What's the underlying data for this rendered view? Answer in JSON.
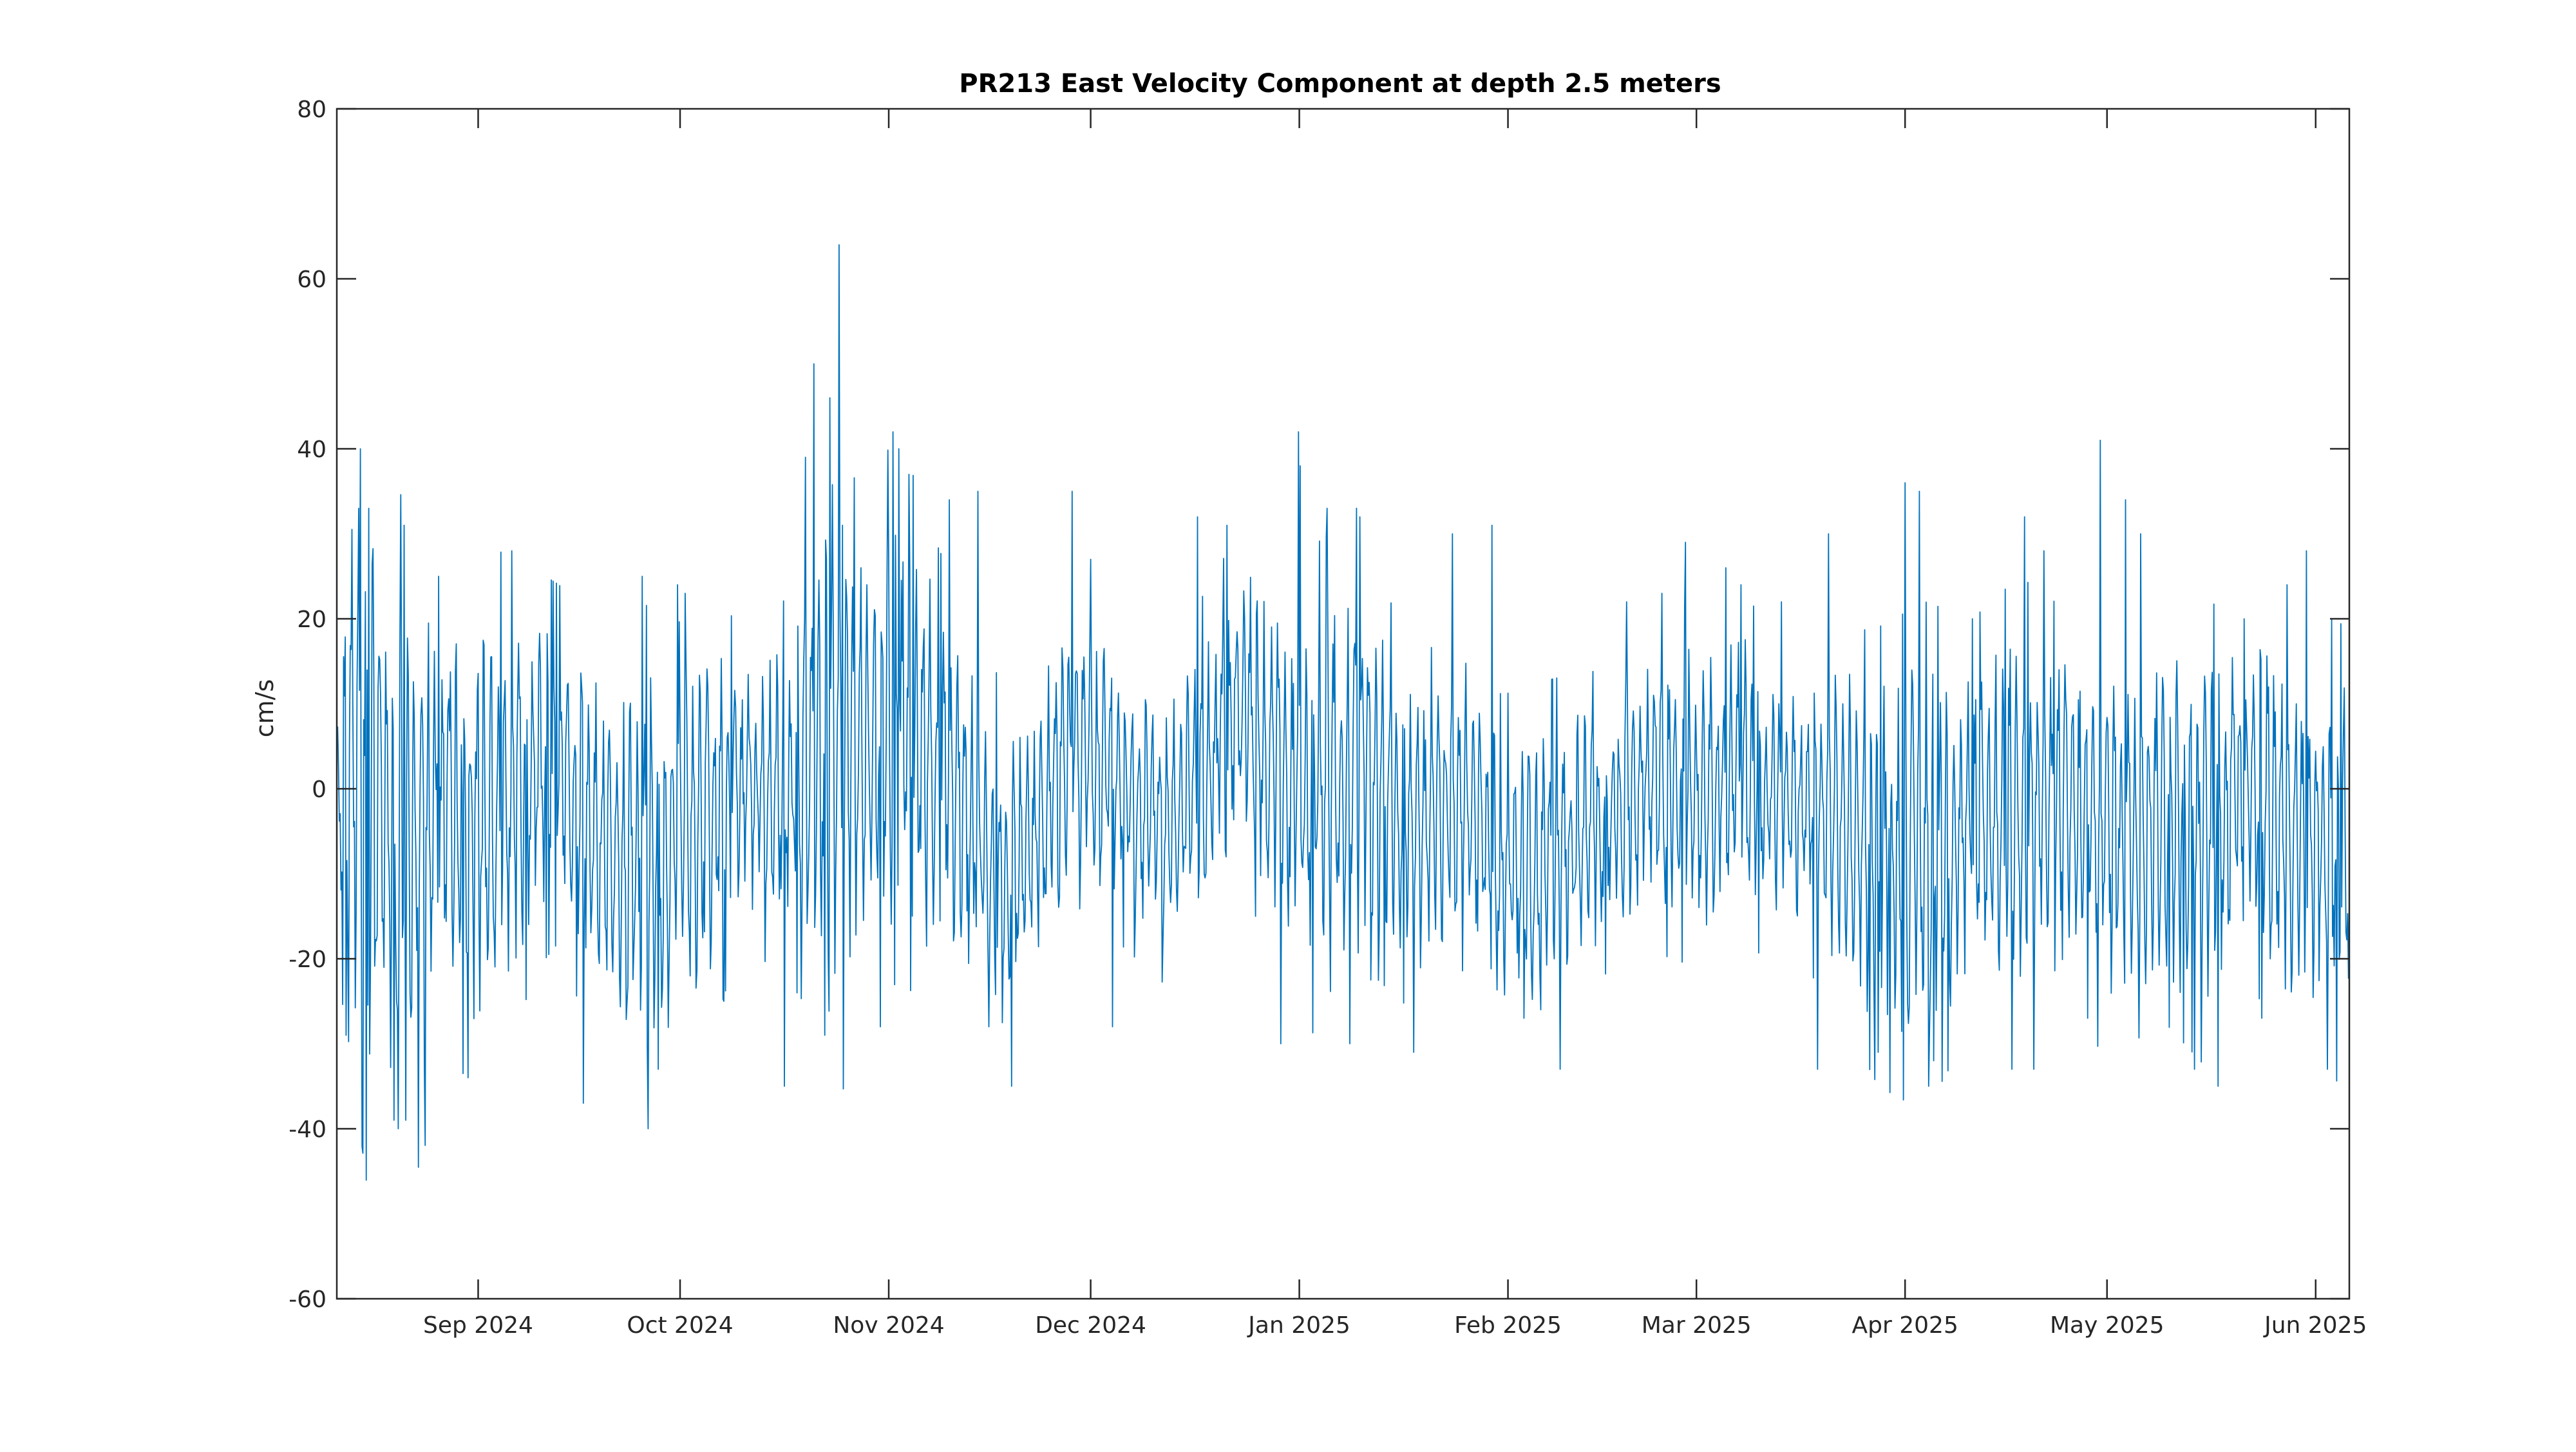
{
  "chart_data": {
    "type": "line",
    "title": "PR213 East Velocity Component at depth 2.5 meters",
    "xlabel": "",
    "ylabel": "cm/s",
    "x_range": [
      "2024-08-11",
      "2025-06-06"
    ],
    "ylim": [
      -60,
      80
    ],
    "y_ticks": [
      80,
      60,
      40,
      20,
      0,
      -20,
      -40,
      -60
    ],
    "y_tick_labels": [
      "80",
      "60",
      "40",
      "20",
      "0",
      "-20",
      "-40",
      "-60"
    ],
    "x_ticks": [
      {
        "date": "2024-09-01",
        "label": "Sep 2024"
      },
      {
        "date": "2024-10-01",
        "label": "Oct 2024"
      },
      {
        "date": "2024-11-01",
        "label": "Nov 2024"
      },
      {
        "date": "2024-12-01",
        "label": "Dec 2024"
      },
      {
        "date": "2025-01-01",
        "label": "Jan 2025"
      },
      {
        "date": "2025-02-01",
        "label": "Feb 2025"
      },
      {
        "date": "2025-03-01",
        "label": "Mar 2025"
      },
      {
        "date": "2025-04-01",
        "label": "Apr 2025"
      },
      {
        "date": "2025-05-01",
        "label": "May 2025"
      },
      {
        "date": "2025-06-01",
        "label": "Jun 2025"
      }
    ],
    "grid": false,
    "series": [
      {
        "color": "#0072BD",
        "samples_per_day": 8,
        "x_start": "2024-08-11",
        "x_end": "2025-06-06",
        "envelope_keypoints": [
          {
            "date": "2024-08-11",
            "center": -3,
            "amp": 12
          },
          {
            "date": "2024-08-13",
            "center": 8,
            "amp": 26
          },
          {
            "date": "2024-08-16",
            "center": -5,
            "amp": 30
          },
          {
            "date": "2024-08-21",
            "center": -8,
            "amp": 28
          },
          {
            "date": "2024-08-28",
            "center": -2,
            "amp": 20
          },
          {
            "date": "2024-09-04",
            "center": -5,
            "amp": 22
          },
          {
            "date": "2024-09-09",
            "center": 2,
            "amp": 16
          },
          {
            "date": "2024-09-13",
            "center": 3,
            "amp": 14
          },
          {
            "date": "2024-09-20",
            "center": -8,
            "amp": 18
          },
          {
            "date": "2024-09-27",
            "center": -8,
            "amp": 20
          },
          {
            "date": "2024-10-03",
            "center": -3,
            "amp": 22
          },
          {
            "date": "2024-10-10",
            "center": 0,
            "amp": 12
          },
          {
            "date": "2024-10-17",
            "center": 0,
            "amp": 15
          },
          {
            "date": "2024-10-22",
            "center": 5,
            "amp": 22
          },
          {
            "date": "2024-10-24",
            "center": 8,
            "amp": 32
          },
          {
            "date": "2024-10-28",
            "center": 2,
            "amp": 18
          },
          {
            "date": "2024-11-02",
            "center": 10,
            "amp": 22
          },
          {
            "date": "2024-11-08",
            "center": 2,
            "amp": 18
          },
          {
            "date": "2024-11-12",
            "center": -2,
            "amp": 16
          },
          {
            "date": "2024-11-18",
            "center": -12,
            "amp": 16
          },
          {
            "date": "2024-11-24",
            "center": -4,
            "amp": 14
          },
          {
            "date": "2024-11-28",
            "center": 5,
            "amp": 16
          },
          {
            "date": "2024-12-05",
            "center": 0,
            "amp": 12
          },
          {
            "date": "2024-12-12",
            "center": -5,
            "amp": 12
          },
          {
            "date": "2024-12-19",
            "center": 4,
            "amp": 14
          },
          {
            "date": "2024-12-24",
            "center": 10,
            "amp": 14
          },
          {
            "date": "2024-12-30",
            "center": 0,
            "amp": 18
          },
          {
            "date": "2025-01-06",
            "center": 0,
            "amp": 20
          },
          {
            "date": "2025-01-12",
            "center": 2,
            "amp": 16
          },
          {
            "date": "2025-01-19",
            "center": -6,
            "amp": 14
          },
          {
            "date": "2025-01-25",
            "center": 0,
            "amp": 14
          },
          {
            "date": "2025-01-31",
            "center": -10,
            "amp": 14
          },
          {
            "date": "2025-02-08",
            "center": -8,
            "amp": 14
          },
          {
            "date": "2025-02-15",
            "center": -4,
            "amp": 12
          },
          {
            "date": "2025-02-22",
            "center": 2,
            "amp": 14
          },
          {
            "date": "2025-03-01",
            "center": 0,
            "amp": 14
          },
          {
            "date": "2025-03-08",
            "center": 2,
            "amp": 14
          },
          {
            "date": "2025-03-15",
            "center": -2,
            "amp": 12
          },
          {
            "date": "2025-03-21",
            "center": -3,
            "amp": 14
          },
          {
            "date": "2025-03-28",
            "center": -8,
            "amp": 18
          },
          {
            "date": "2025-04-04",
            "center": -8,
            "amp": 20
          },
          {
            "date": "2025-04-11",
            "center": -4,
            "amp": 16
          },
          {
            "date": "2025-04-18",
            "center": -2,
            "amp": 18
          },
          {
            "date": "2025-04-25",
            "center": -3,
            "amp": 16
          },
          {
            "date": "2025-05-02",
            "center": -5,
            "amp": 18
          },
          {
            "date": "2025-05-09",
            "center": -3,
            "amp": 16
          },
          {
            "date": "2025-05-16",
            "center": -6,
            "amp": 18
          },
          {
            "date": "2025-05-22",
            "center": 2,
            "amp": 16
          },
          {
            "date": "2025-05-28",
            "center": -5,
            "amp": 18
          },
          {
            "date": "2025-06-06",
            "center": -8,
            "amp": 18
          }
        ],
        "spikes": [
          {
            "date": "2024-08-12",
            "y": -29
          },
          {
            "date": "2024-08-14",
            "y": 40
          },
          {
            "date": "2024-08-14",
            "y": 33
          },
          {
            "date": "2024-08-15",
            "y": 33
          },
          {
            "date": "2024-08-19",
            "y": -39
          },
          {
            "date": "2024-08-20",
            "y": -40
          },
          {
            "date": "2024-08-21",
            "y": 31
          },
          {
            "date": "2024-08-21",
            "y": -39
          },
          {
            "date": "2024-08-26",
            "y": 25
          },
          {
            "date": "2024-08-30",
            "y": -34
          },
          {
            "date": "2024-09-06",
            "y": 28
          },
          {
            "date": "2024-09-16",
            "y": -37
          },
          {
            "date": "2024-09-25",
            "y": 25
          },
          {
            "date": "2024-09-27",
            "y": -33
          },
          {
            "date": "2024-09-30",
            "y": 24
          },
          {
            "date": "2024-10-01",
            "y": 23
          },
          {
            "date": "2024-09-26",
            "y": -40
          },
          {
            "date": "2024-10-07",
            "y": -25
          },
          {
            "date": "2024-10-16",
            "y": -35
          },
          {
            "date": "2024-10-19",
            "y": 39
          },
          {
            "date": "2024-10-20",
            "y": 50
          },
          {
            "date": "2024-10-22",
            "y": -29
          },
          {
            "date": "2024-10-23",
            "y": 46
          },
          {
            "date": "2024-10-24",
            "y": 64
          },
          {
            "date": "2024-10-25",
            "y": 31
          },
          {
            "date": "2024-10-27",
            "y": 26
          },
          {
            "date": "2024-10-30",
            "y": -28
          },
          {
            "date": "2024-11-01",
            "y": 42
          },
          {
            "date": "2024-11-02",
            "y": 40
          },
          {
            "date": "2024-11-04",
            "y": 37
          },
          {
            "date": "2024-11-10",
            "y": 34
          },
          {
            "date": "2024-11-14",
            "y": 35
          },
          {
            "date": "2024-11-15",
            "y": -28
          },
          {
            "date": "2024-11-19",
            "y": -35
          },
          {
            "date": "2024-11-28",
            "y": 35
          },
          {
            "date": "2024-12-01",
            "y": 27
          },
          {
            "date": "2024-12-04",
            "y": -28
          },
          {
            "date": "2024-12-16",
            "y": 32
          },
          {
            "date": "2024-12-21",
            "y": 31
          },
          {
            "date": "2024-12-29",
            "y": -30
          },
          {
            "date": "2024-12-31",
            "y": 42
          },
          {
            "date": "2025-01-01",
            "y": 38
          },
          {
            "date": "2025-01-05",
            "y": 33
          },
          {
            "date": "2025-01-08",
            "y": -30
          },
          {
            "date": "2025-01-09",
            "y": 33
          },
          {
            "date": "2025-01-10",
            "y": 32
          },
          {
            "date": "2025-01-18",
            "y": -31
          },
          {
            "date": "2025-01-23",
            "y": 30
          },
          {
            "date": "2025-01-29",
            "y": 31
          },
          {
            "date": "2025-02-03",
            "y": -27
          },
          {
            "date": "2025-02-05",
            "y": -26
          },
          {
            "date": "2025-02-08",
            "y": -33
          },
          {
            "date": "2025-02-18",
            "y": 22
          },
          {
            "date": "2025-02-23",
            "y": 23
          },
          {
            "date": "2025-02-27",
            "y": 29
          },
          {
            "date": "2025-03-05",
            "y": 26
          },
          {
            "date": "2025-03-07",
            "y": 24
          },
          {
            "date": "2025-03-13",
            "y": 22
          },
          {
            "date": "2025-03-19",
            "y": -33
          },
          {
            "date": "2025-03-20",
            "y": 30
          },
          {
            "date": "2025-03-28",
            "y": -31
          },
          {
            "date": "2025-04-01",
            "y": 36
          },
          {
            "date": "2025-04-03",
            "y": 35
          },
          {
            "date": "2025-04-04",
            "y": -35
          },
          {
            "date": "2025-04-05",
            "y": -32
          },
          {
            "date": "2025-04-16",
            "y": -33
          },
          {
            "date": "2025-04-18",
            "y": 32
          },
          {
            "date": "2025-04-20",
            "y": -33
          },
          {
            "date": "2025-04-21",
            "y": 28
          },
          {
            "date": "2025-04-28",
            "y": -27
          },
          {
            "date": "2025-04-30",
            "y": 41
          },
          {
            "date": "2025-05-03",
            "y": 34
          },
          {
            "date": "2025-05-06",
            "y": 30
          },
          {
            "date": "2025-05-14",
            "y": -33
          },
          {
            "date": "2025-05-17",
            "y": -35
          },
          {
            "date": "2025-05-21",
            "y": 20
          },
          {
            "date": "2025-05-24",
            "y": -27
          },
          {
            "date": "2025-05-27",
            "y": 24
          },
          {
            "date": "2025-05-30",
            "y": 28
          },
          {
            "date": "2025-06-02",
            "y": -33
          }
        ]
      }
    ]
  }
}
